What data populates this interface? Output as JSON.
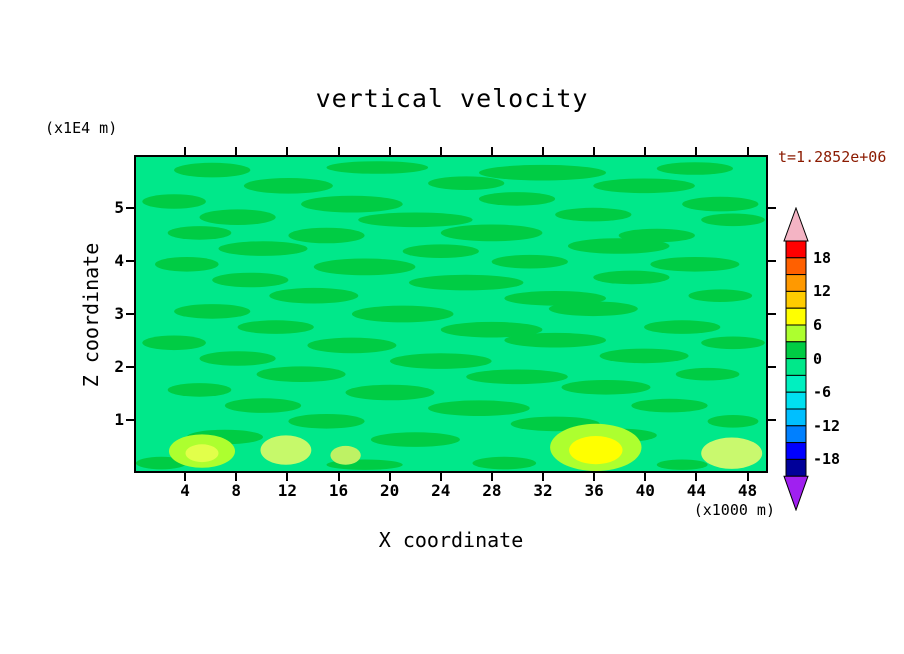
{
  "chart_data": {
    "type": "filled-contour",
    "title": "vertical velocity",
    "time_label": "t=1.2852e+06",
    "xlabel": "X coordinate",
    "ylabel": "Z coordinate",
    "x_units": "(x1000 m)",
    "y_units": "(x1E4 m)",
    "x_range": [
      0,
      49.6
    ],
    "z_range": [
      0,
      6
    ],
    "x_ticks": [
      4,
      8,
      12,
      16,
      20,
      24,
      28,
      32,
      36,
      40,
      44,
      48
    ],
    "z_ticks": [
      1,
      2,
      3,
      4,
      5
    ],
    "contour_levels": [
      -21,
      -18,
      -15,
      -12,
      -9,
      -6,
      -3,
      0,
      3,
      6,
      9,
      12,
      15,
      18,
      21
    ],
    "colorbar": {
      "labels": [
        "18",
        "12",
        "6",
        "0",
        "-6",
        "-12",
        "-18"
      ],
      "cell_colors_top_to_bottom": [
        "#FF0000",
        "#FF6000",
        "#FF9900",
        "#FFCC00",
        "#FFFF00",
        "#ADFF2F",
        "#00CC44",
        "#00E88A",
        "#00F0C0",
        "#00E0F0",
        "#00BFFF",
        "#0080FF",
        "#0000FF",
        "#000099"
      ],
      "over_arrow_color": "#F4B4C4",
      "under_arrow_color": "#A020F0"
    },
    "field": {
      "background_level": "-3 to 0",
      "background_color": "#00E88A",
      "streak_level": "0 to 3",
      "streak_color": "#00CC44",
      "streaks": [
        [
          6,
          5.75,
          3,
          0.14
        ],
        [
          19,
          5.8,
          4,
          0.12
        ],
        [
          32,
          5.7,
          5,
          0.15
        ],
        [
          44,
          5.78,
          3,
          0.12
        ],
        [
          12,
          5.45,
          3.5,
          0.15
        ],
        [
          26,
          5.5,
          3,
          0.13
        ],
        [
          40,
          5.45,
          4,
          0.14
        ],
        [
          3,
          5.15,
          2.5,
          0.14
        ],
        [
          17,
          5.1,
          4,
          0.16
        ],
        [
          30,
          5.2,
          3,
          0.13
        ],
        [
          46,
          5.1,
          3,
          0.14
        ],
        [
          8,
          4.85,
          3,
          0.15
        ],
        [
          22,
          4.8,
          4.5,
          0.14
        ],
        [
          36,
          4.9,
          3,
          0.13
        ],
        [
          47,
          4.8,
          2.5,
          0.12
        ],
        [
          5,
          4.55,
          2.5,
          0.13
        ],
        [
          15,
          4.5,
          3,
          0.15
        ],
        [
          28,
          4.55,
          4,
          0.16
        ],
        [
          41,
          4.5,
          3,
          0.13
        ],
        [
          10,
          4.25,
          3.5,
          0.14
        ],
        [
          24,
          4.2,
          3,
          0.13
        ],
        [
          38,
          4.3,
          4,
          0.15
        ],
        [
          4,
          3.95,
          2.5,
          0.14
        ],
        [
          18,
          3.9,
          4,
          0.16
        ],
        [
          31,
          4.0,
          3,
          0.13
        ],
        [
          44,
          3.95,
          3.5,
          0.14
        ],
        [
          9,
          3.65,
          3,
          0.14
        ],
        [
          26,
          3.6,
          4.5,
          0.15
        ],
        [
          39,
          3.7,
          3,
          0.13
        ],
        [
          14,
          3.35,
          3.5,
          0.15
        ],
        [
          33,
          3.3,
          4,
          0.14
        ],
        [
          46,
          3.35,
          2.5,
          0.12
        ],
        [
          6,
          3.05,
          3,
          0.14
        ],
        [
          21,
          3.0,
          4,
          0.16
        ],
        [
          36,
          3.1,
          3.5,
          0.14
        ],
        [
          11,
          2.75,
          3,
          0.13
        ],
        [
          28,
          2.7,
          4,
          0.15
        ],
        [
          43,
          2.75,
          3,
          0.13
        ],
        [
          3,
          2.45,
          2.5,
          0.14
        ],
        [
          17,
          2.4,
          3.5,
          0.15
        ],
        [
          33,
          2.5,
          4,
          0.14
        ],
        [
          47,
          2.45,
          2.5,
          0.12
        ],
        [
          8,
          2.15,
          3,
          0.14
        ],
        [
          24,
          2.1,
          4,
          0.15
        ],
        [
          40,
          2.2,
          3.5,
          0.14
        ],
        [
          13,
          1.85,
          3.5,
          0.15
        ],
        [
          30,
          1.8,
          4,
          0.14
        ],
        [
          45,
          1.85,
          2.5,
          0.12
        ],
        [
          5,
          1.55,
          2.5,
          0.13
        ],
        [
          20,
          1.5,
          3.5,
          0.15
        ],
        [
          37,
          1.6,
          3.5,
          0.14
        ],
        [
          10,
          1.25,
          3,
          0.14
        ],
        [
          27,
          1.2,
          4,
          0.15
        ],
        [
          42,
          1.25,
          3,
          0.13
        ],
        [
          15,
          0.95,
          3,
          0.14
        ],
        [
          33,
          0.9,
          3.5,
          0.14
        ],
        [
          47,
          0.95,
          2,
          0.12
        ],
        [
          7,
          0.65,
          3,
          0.14
        ],
        [
          22,
          0.6,
          3.5,
          0.14
        ],
        [
          38,
          0.68,
          3,
          0.13
        ],
        [
          2,
          0.15,
          2,
          0.12
        ],
        [
          18,
          0.12,
          3,
          0.1
        ],
        [
          29,
          0.15,
          2.5,
          0.12
        ],
        [
          43,
          0.12,
          2,
          0.1
        ]
      ],
      "hotspots": [
        [
          5.2,
          0.38,
          2.6,
          0.32,
          "#ADFF2F"
        ],
        [
          5.2,
          0.34,
          1.3,
          0.17,
          "#E2FF4A"
        ],
        [
          11.8,
          0.4,
          2.0,
          0.28,
          "#C6F96A"
        ],
        [
          16.5,
          0.3,
          1.2,
          0.18,
          "#BEF264"
        ],
        [
          36.2,
          0.45,
          3.6,
          0.45,
          "#ADFF2F"
        ],
        [
          36.2,
          0.4,
          2.1,
          0.27,
          "#FFFF00"
        ],
        [
          46.9,
          0.34,
          2.4,
          0.3,
          "#C9F96E"
        ]
      ]
    }
  }
}
